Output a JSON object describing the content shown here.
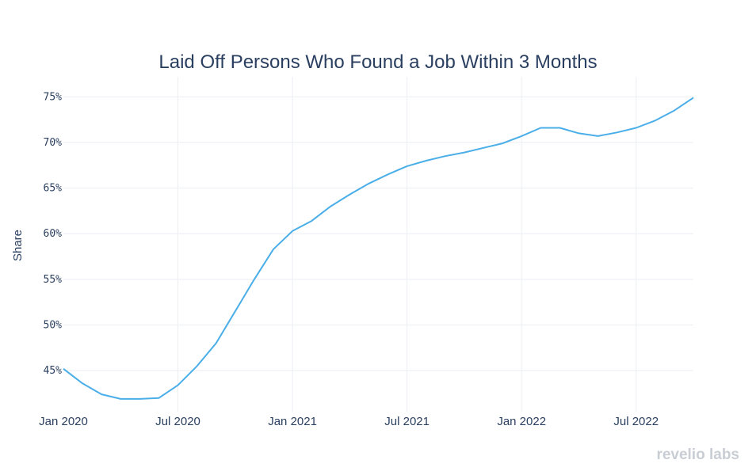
{
  "chart_data": {
    "type": "line",
    "title": "Laid Off Persons Who Found a Job Within 3 Months",
    "xlabel": "",
    "ylabel": "Share",
    "ylim": [
      0.405,
      0.765
    ],
    "x_range": [
      "2020-01",
      "2022-10"
    ],
    "yticks": [
      {
        "value": 0.45,
        "label": "45%"
      },
      {
        "value": 0.5,
        "label": "50%"
      },
      {
        "value": 0.55,
        "label": "55%"
      },
      {
        "value": 0.6,
        "label": "60%"
      },
      {
        "value": 0.65,
        "label": "65%"
      },
      {
        "value": 0.7,
        "label": "70%"
      },
      {
        "value": 0.75,
        "label": "75%"
      }
    ],
    "xticks": [
      {
        "index": 0,
        "label": "Jan 2020"
      },
      {
        "index": 6,
        "label": "Jul 2020"
      },
      {
        "index": 12,
        "label": "Jan 2021"
      },
      {
        "index": 18,
        "label": "Jul 2021"
      },
      {
        "index": 24,
        "label": "Jan 2022"
      },
      {
        "index": 30,
        "label": "Jul 2022"
      }
    ],
    "grid": true,
    "series": [
      {
        "name": "Share",
        "color": "#4aaee8",
        "x": [
          "2020-01",
          "2020-02",
          "2020-03",
          "2020-04",
          "2020-05",
          "2020-06",
          "2020-07",
          "2020-08",
          "2020-09",
          "2020-10",
          "2020-11",
          "2020-12",
          "2021-01",
          "2021-02",
          "2021-03",
          "2021-04",
          "2021-05",
          "2021-06",
          "2021-07",
          "2021-08",
          "2021-09",
          "2021-10",
          "2021-11",
          "2021-12",
          "2022-01",
          "2022-02",
          "2022-03",
          "2022-04",
          "2022-05",
          "2022-06",
          "2022-07",
          "2022-08",
          "2022-09",
          "2022-10"
        ],
        "values": [
          0.452,
          0.436,
          0.424,
          0.419,
          0.419,
          0.42,
          0.434,
          0.455,
          0.48,
          0.515,
          0.55,
          0.583,
          0.603,
          0.614,
          0.63,
          0.643,
          0.655,
          0.665,
          0.674,
          0.68,
          0.685,
          0.689,
          0.694,
          0.699,
          0.707,
          0.716,
          0.716,
          0.71,
          0.707,
          0.711,
          0.716,
          0.724,
          0.735,
          0.749
        ]
      }
    ]
  },
  "brand": {
    "logo_text": "revelio labs"
  }
}
